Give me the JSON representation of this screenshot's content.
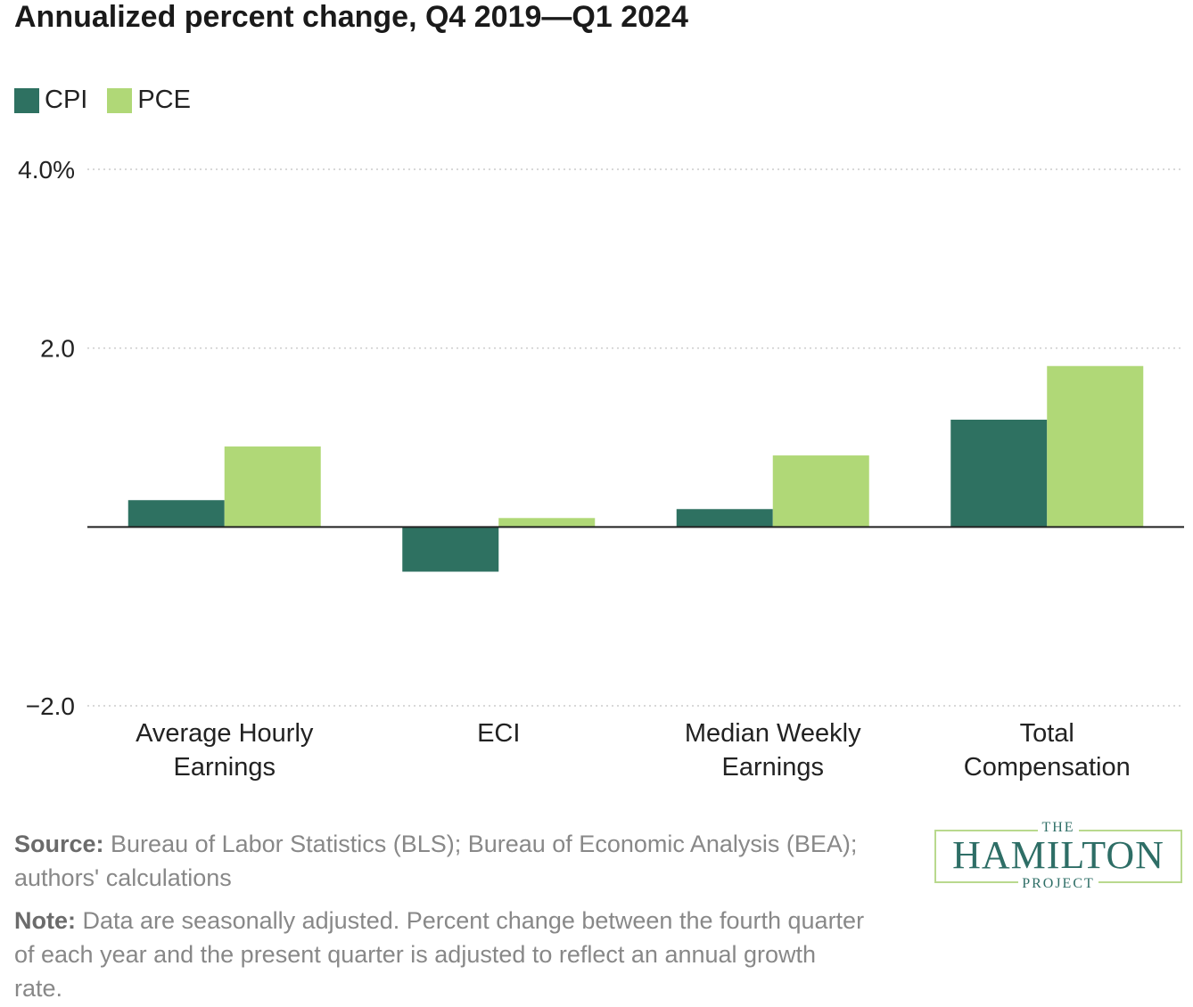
{
  "title": "Annualized percent change, Q4 2019—Q1 2024",
  "legend": [
    {
      "label": "CPI",
      "color": "#2e7161"
    },
    {
      "label": "PCE",
      "color": "#b0d877"
    }
  ],
  "footer": {
    "source_label": "Source:",
    "source_text": " Bureau of Labor Statistics (BLS); Bureau of Economic Analysis (BEA); authors' calculations",
    "note_label": "Note:",
    "note_text": " Data are seasonally adjusted. Percent change between the fourth quarter of each year and the present quarter is adjusted to reflect an annual growth rate."
  },
  "logo": {
    "the": "THE",
    "main": "HAMILTON",
    "project": "PROJECT"
  },
  "chart_data": {
    "type": "bar",
    "categories": [
      [
        "Average Hourly",
        "Earnings"
      ],
      [
        "ECI"
      ],
      [
        "Median Weekly",
        "Earnings"
      ],
      [
        "Total",
        "Compensation"
      ]
    ],
    "series": [
      {
        "name": "CPI",
        "color": "#2e7161",
        "values": [
          0.3,
          -0.5,
          0.2,
          1.2
        ]
      },
      {
        "name": "PCE",
        "color": "#b0d877",
        "values": [
          0.9,
          0.1,
          0.8,
          1.8
        ]
      }
    ],
    "yticks": [
      {
        "value": 4,
        "label": "4.0%"
      },
      {
        "value": 2,
        "label": "2.0"
      },
      {
        "value": -2,
        "label": "−2.0"
      }
    ],
    "ylim": [
      -2,
      4
    ],
    "grid": true,
    "legend_position": "top-left"
  }
}
